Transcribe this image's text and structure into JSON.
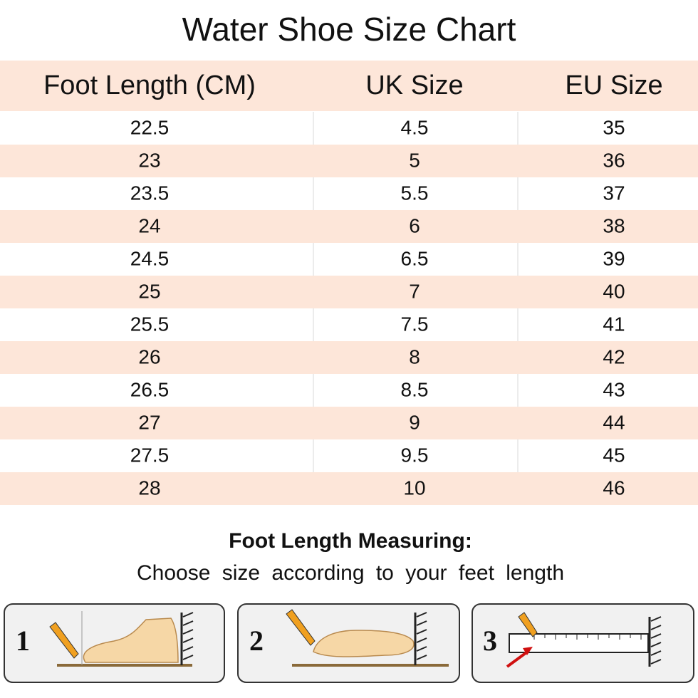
{
  "title": "Water Shoe Size Chart",
  "table": {
    "headers": [
      "Foot Length (CM)",
      "UK Size",
      "EU Size"
    ],
    "rows": [
      [
        "22.5",
        "4.5",
        "35"
      ],
      [
        "23",
        "5",
        "36"
      ],
      [
        "23.5",
        "5.5",
        "37"
      ],
      [
        "24",
        "6",
        "38"
      ],
      [
        "24.5",
        "6.5",
        "39"
      ],
      [
        "25",
        "7",
        "40"
      ],
      [
        "25.5",
        "7.5",
        "41"
      ],
      [
        "26",
        "8",
        "42"
      ],
      [
        "26.5",
        "8.5",
        "43"
      ],
      [
        "27",
        "9",
        "44"
      ],
      [
        "27.5",
        "9.5",
        "45"
      ],
      [
        "28",
        "10",
        "46"
      ]
    ]
  },
  "measuring": {
    "heading": "Foot Length Measuring:",
    "subtitle": "Choose size according to your feet length",
    "steps": [
      "1",
      "2",
      "3"
    ]
  }
}
